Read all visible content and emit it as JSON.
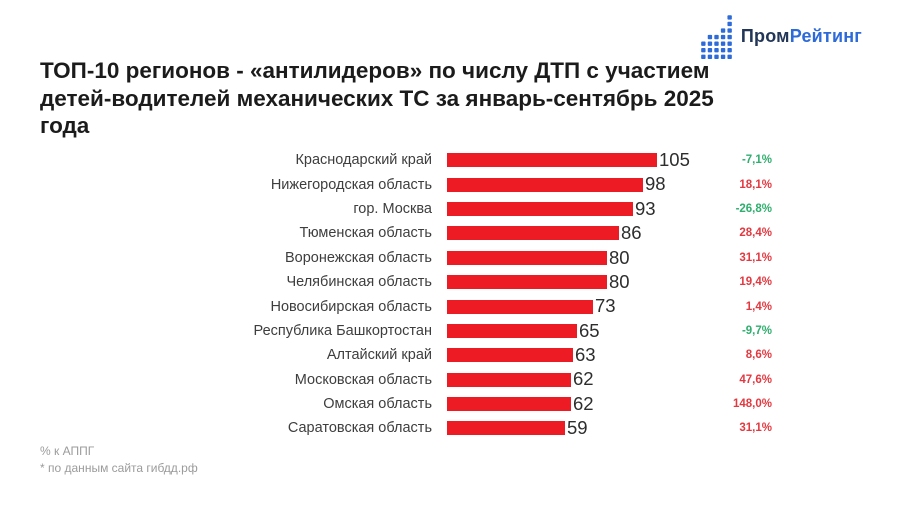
{
  "logo": {
    "icon": "dot-bar-chart-icon",
    "text_primary": "Пром",
    "text_secondary": "Рейтинг"
  },
  "title": "ТОП-10 регионов - «антилидеров» по числу ДТП с участием детей-водителей механических ТС за январь-сентябрь 2025 года",
  "title_lines": [
    "ТОП-10 регионов - «антилидеров» по числу ДТП с участием",
    "детей-водителей механических ТС за январь-сентябрь 2025",
    "года"
  ],
  "footnotes": {
    "line1": "% к АППГ",
    "line2": "* по данным сайта гибдд.рф"
  },
  "colors": {
    "bar": "#ED1C24",
    "percent_positive": "#E23940",
    "percent_negative": "#2FAE6E",
    "value_text": "#2D2D2D",
    "label_text": "#3E3E3E",
    "title_text": "#1B1B1B",
    "footnote_text": "#9B9B9B",
    "logo_primary": "#223657",
    "logo_secondary": "#2D6BD9"
  },
  "chart_data": {
    "type": "bar",
    "orientation": "horizontal",
    "title": "ТОП-10 регионов - «антилидеров» по числу ДТП с участием детей-водителей механических ТС за январь-сентябрь 2025 года",
    "categories": [
      "Краснодарский край",
      "Нижегородская область",
      "гор. Москва",
      "Тюменская область",
      "Воронежская область",
      "Челябинская область",
      "Новосибирская область",
      "Республика Башкортостан",
      "Алтайский край",
      "Московская область",
      "Омская область",
      "Саратовская область"
    ],
    "values": [
      105,
      98,
      93,
      86,
      80,
      80,
      73,
      65,
      63,
      62,
      62,
      59
    ],
    "change_pct": [
      -7.1,
      18.1,
      -26.8,
      28.4,
      31.1,
      19.4,
      1.4,
      -9.7,
      8.6,
      47.6,
      148.0,
      31.1
    ],
    "change_labels": [
      "-7,1%",
      "18,1%",
      "-26,8%",
      "28,4%",
      "31,1%",
      "19,4%",
      "1,4%",
      "-9,7%",
      "8,6%",
      "47,6%",
      "148,0%",
      "31,1%"
    ],
    "xlim": [
      0,
      105
    ],
    "value_labels_shown": true,
    "grid": false,
    "legend": null,
    "change_note": "% к АППГ"
  }
}
